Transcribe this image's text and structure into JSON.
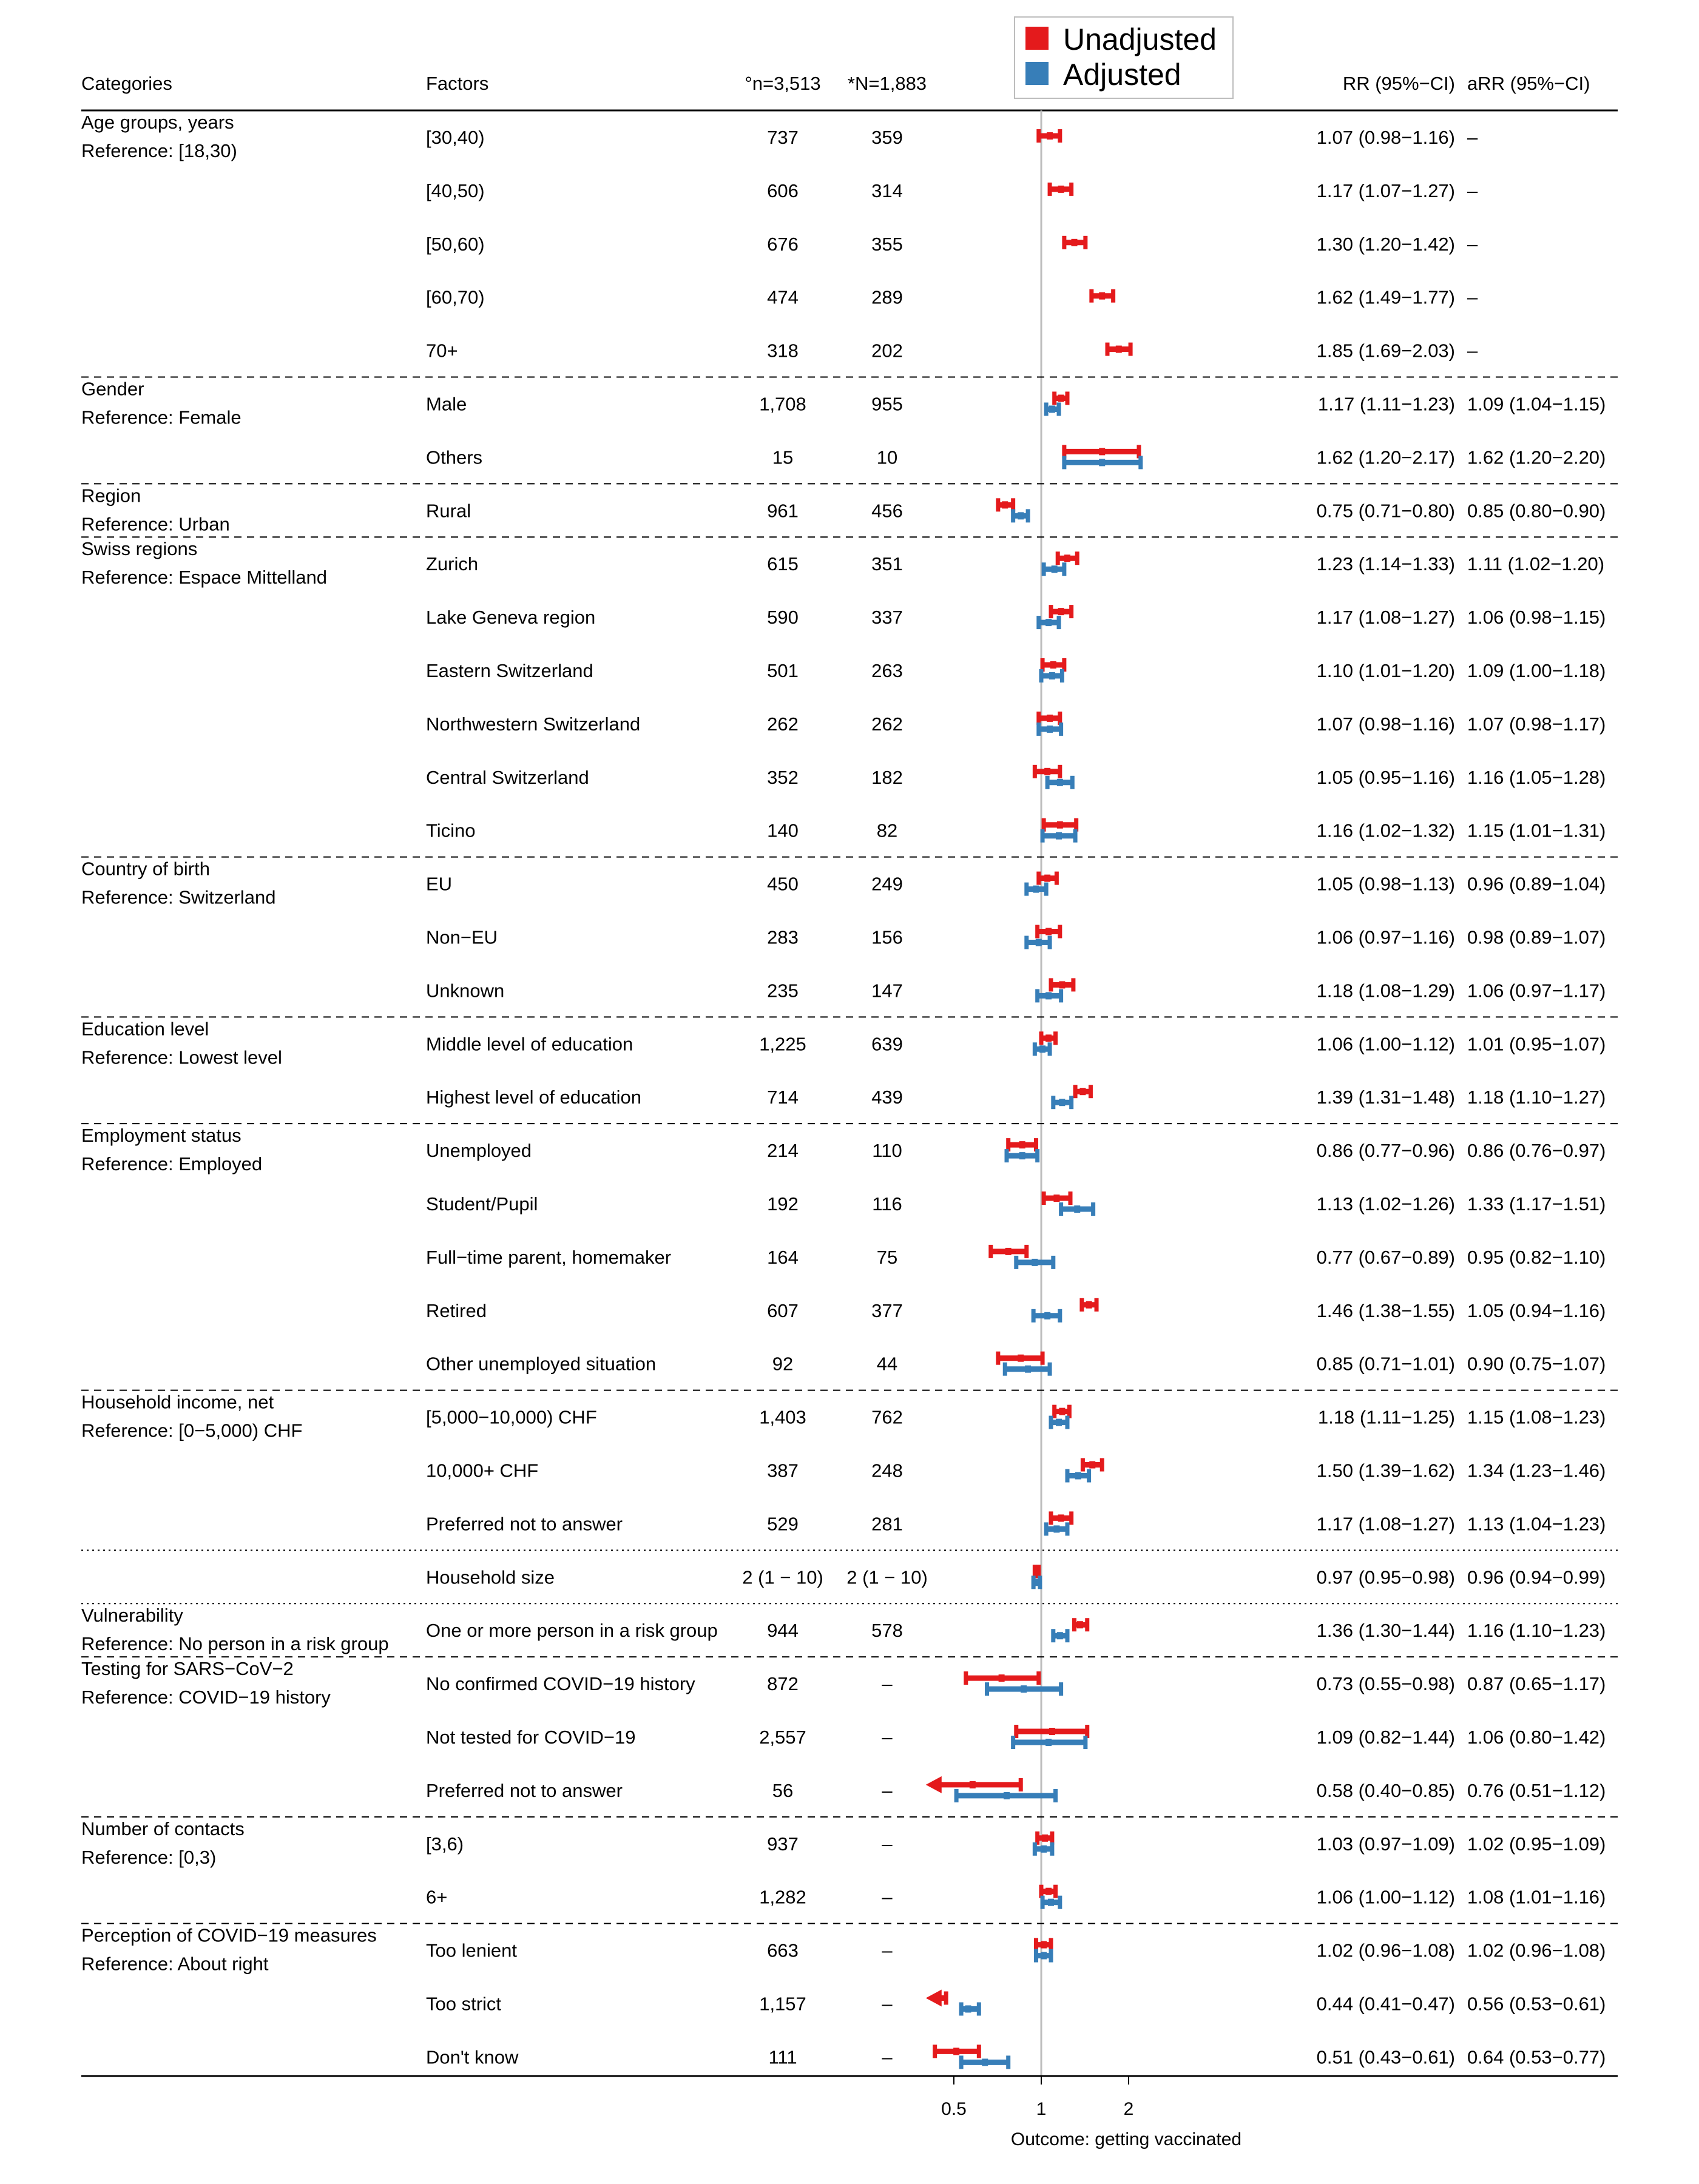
{
  "headers": {
    "categories": "Categories",
    "factors": "Factors",
    "n": "°n=3,513",
    "N": "*N=1,883",
    "rr": "RR (95%−CI)",
    "arr": "aRR (95%−CI)"
  },
  "legend": [
    {
      "label": "Unadjusted",
      "color": "#e41a1c"
    },
    {
      "label": "Adjusted",
      "color": "#377eb8"
    }
  ],
  "axis": {
    "scale": "log",
    "ticks": [
      {
        "value": 0.5,
        "label": "0.5"
      },
      {
        "value": 1,
        "label": "1"
      },
      {
        "value": 2,
        "label": "2"
      }
    ],
    "label": "Outcome: getting vaccinated",
    "reference_line": 1,
    "lower_clip": 0.42
  },
  "sections": [
    {
      "title": "Age groups, years",
      "reference": "Reference: [18,30)",
      "separator": "dashed",
      "rows": [
        {
          "factor": "[30,40)",
          "n": "737",
          "N": "359",
          "rr_text": "1.07 (0.98−1.16)",
          "arr_text": "–",
          "rr": [
            1.07,
            0.98,
            1.16
          ],
          "arr": null
        },
        {
          "factor": "[40,50)",
          "n": "606",
          "N": "314",
          "rr_text": "1.17 (1.07−1.27)",
          "arr_text": "–",
          "rr": [
            1.17,
            1.07,
            1.27
          ],
          "arr": null
        },
        {
          "factor": "[50,60)",
          "n": "676",
          "N": "355",
          "rr_text": "1.30 (1.20−1.42)",
          "arr_text": "–",
          "rr": [
            1.3,
            1.2,
            1.42
          ],
          "arr": null
        },
        {
          "factor": "[60,70)",
          "n": "474",
          "N": "289",
          "rr_text": "1.62 (1.49−1.77)",
          "arr_text": "–",
          "rr": [
            1.62,
            1.49,
            1.77
          ],
          "arr": null
        },
        {
          "factor": "70+",
          "n": "318",
          "N": "202",
          "rr_text": "1.85 (1.69−2.03)",
          "arr_text": "–",
          "rr": [
            1.85,
            1.69,
            2.03
          ],
          "arr": null
        }
      ]
    },
    {
      "title": "Gender",
      "reference": "Reference: Female",
      "separator": "dashed",
      "rows": [
        {
          "factor": "Male",
          "n": "1,708",
          "N": "955",
          "rr_text": "1.17 (1.11−1.23)",
          "arr_text": "1.09 (1.04−1.15)",
          "rr": [
            1.17,
            1.11,
            1.23
          ],
          "arr": [
            1.09,
            1.04,
            1.15
          ]
        },
        {
          "factor": "Others",
          "n": "15",
          "N": "10",
          "rr_text": "1.62 (1.20−2.17)",
          "arr_text": "1.62 (1.20−2.20)",
          "rr": [
            1.62,
            1.2,
            2.17
          ],
          "arr": [
            1.62,
            1.2,
            2.2
          ]
        }
      ]
    },
    {
      "title": "Region",
      "reference": "Reference: Urban",
      "separator": "dashed",
      "rows": [
        {
          "factor": "Rural",
          "n": "961",
          "N": "456",
          "rr_text": "0.75 (0.71−0.80)",
          "arr_text": "0.85 (0.80−0.90)",
          "rr": [
            0.75,
            0.71,
            0.8
          ],
          "arr": [
            0.85,
            0.8,
            0.9
          ]
        }
      ]
    },
    {
      "title": "Swiss regions",
      "reference": "Reference: Espace Mittelland",
      "separator": "dashed",
      "rows": [
        {
          "factor": "Zurich",
          "n": "615",
          "N": "351",
          "rr_text": "1.23 (1.14−1.33)",
          "arr_text": "1.11 (1.02−1.20)",
          "rr": [
            1.23,
            1.14,
            1.33
          ],
          "arr": [
            1.11,
            1.02,
            1.2
          ]
        },
        {
          "factor": "Lake Geneva region",
          "n": "590",
          "N": "337",
          "rr_text": "1.17 (1.08−1.27)",
          "arr_text": "1.06 (0.98−1.15)",
          "rr": [
            1.17,
            1.08,
            1.27
          ],
          "arr": [
            1.06,
            0.98,
            1.15
          ]
        },
        {
          "factor": "Eastern Switzerland",
          "n": "501",
          "N": "263",
          "rr_text": "1.10 (1.01−1.20)",
          "arr_text": "1.09 (1.00−1.18)",
          "rr": [
            1.1,
            1.01,
            1.2
          ],
          "arr": [
            1.09,
            1.0,
            1.18
          ]
        },
        {
          "factor": "Northwestern Switzerland",
          "n": "262",
          "N": "262",
          "rr_text": "1.07 (0.98−1.16)",
          "arr_text": "1.07 (0.98−1.17)",
          "rr": [
            1.07,
            0.98,
            1.16
          ],
          "arr": [
            1.07,
            0.98,
            1.17
          ]
        },
        {
          "factor": "Central Switzerland",
          "n": "352",
          "N": "182",
          "rr_text": "1.05 (0.95−1.16)",
          "arr_text": "1.16 (1.05−1.28)",
          "rr": [
            1.05,
            0.95,
            1.16
          ],
          "arr": [
            1.16,
            1.05,
            1.28
          ]
        },
        {
          "factor": "Ticino",
          "n": "140",
          "N": "82",
          "rr_text": "1.16 (1.02−1.32)",
          "arr_text": "1.15 (1.01−1.31)",
          "rr": [
            1.16,
            1.02,
            1.32
          ],
          "arr": [
            1.15,
            1.01,
            1.31
          ]
        }
      ]
    },
    {
      "title": "Country of birth",
      "reference": "Reference: Switzerland",
      "separator": "dashed",
      "rows": [
        {
          "factor": "EU",
          "n": "450",
          "N": "249",
          "rr_text": "1.05 (0.98−1.13)",
          "arr_text": "0.96 (0.89−1.04)",
          "rr": [
            1.05,
            0.98,
            1.13
          ],
          "arr": [
            0.96,
            0.89,
            1.04
          ]
        },
        {
          "factor": "Non−EU",
          "n": "283",
          "N": "156",
          "rr_text": "1.06 (0.97−1.16)",
          "arr_text": "0.98 (0.89−1.07)",
          "rr": [
            1.06,
            0.97,
            1.16
          ],
          "arr": [
            0.98,
            0.89,
            1.07
          ]
        },
        {
          "factor": "Unknown",
          "n": "235",
          "N": "147",
          "rr_text": "1.18 (1.08−1.29)",
          "arr_text": "1.06 (0.97−1.17)",
          "rr": [
            1.18,
            1.08,
            1.29
          ],
          "arr": [
            1.06,
            0.97,
            1.17
          ]
        }
      ]
    },
    {
      "title": "Education level",
      "reference": "Reference: Lowest level",
      "separator": "dashed",
      "rows": [
        {
          "factor": "Middle level of education",
          "n": "1,225",
          "N": "639",
          "rr_text": "1.06 (1.00−1.12)",
          "arr_text": "1.01 (0.95−1.07)",
          "rr": [
            1.06,
            1.0,
            1.12
          ],
          "arr": [
            1.01,
            0.95,
            1.07
          ]
        },
        {
          "factor": "Highest level of education",
          "n": "714",
          "N": "439",
          "rr_text": "1.39 (1.31−1.48)",
          "arr_text": "1.18 (1.10−1.27)",
          "rr": [
            1.39,
            1.31,
            1.48
          ],
          "arr": [
            1.18,
            1.1,
            1.27
          ]
        }
      ]
    },
    {
      "title": "Employment status",
      "reference": "Reference: Employed",
      "separator": "dashed",
      "rows": [
        {
          "factor": "Unemployed",
          "n": "214",
          "N": "110",
          "rr_text": "0.86 (0.77−0.96)",
          "arr_text": "0.86 (0.76−0.97)",
          "rr": [
            0.86,
            0.77,
            0.96
          ],
          "arr": [
            0.86,
            0.76,
            0.97
          ]
        },
        {
          "factor": "Student/Pupil",
          "n": "192",
          "N": "116",
          "rr_text": "1.13 (1.02−1.26)",
          "arr_text": "1.33 (1.17−1.51)",
          "rr": [
            1.13,
            1.02,
            1.26
          ],
          "arr": [
            1.33,
            1.17,
            1.51
          ]
        },
        {
          "factor": "Full−time parent, homemaker",
          "n": "164",
          "N": "75",
          "rr_text": "0.77 (0.67−0.89)",
          "arr_text": "0.95 (0.82−1.10)",
          "rr": [
            0.77,
            0.67,
            0.89
          ],
          "arr": [
            0.95,
            0.82,
            1.1
          ]
        },
        {
          "factor": "Retired",
          "n": "607",
          "N": "377",
          "rr_text": "1.46 (1.38−1.55)",
          "arr_text": "1.05 (0.94−1.16)",
          "rr": [
            1.46,
            1.38,
            1.55
          ],
          "arr": [
            1.05,
            0.94,
            1.16
          ]
        },
        {
          "factor": "Other unemployed situation",
          "n": "92",
          "N": "44",
          "rr_text": "0.85 (0.71−1.01)",
          "arr_text": "0.90 (0.75−1.07)",
          "rr": [
            0.85,
            0.71,
            1.01
          ],
          "arr": [
            0.9,
            0.75,
            1.07
          ]
        }
      ]
    },
    {
      "title": "Household income, net",
      "reference": "Reference: [0−5,000) CHF",
      "separator": "dotted",
      "rows": [
        {
          "factor": "[5,000−10,000) CHF",
          "n": "1,403",
          "N": "762",
          "rr_text": "1.18 (1.11−1.25)",
          "arr_text": "1.15 (1.08−1.23)",
          "rr": [
            1.18,
            1.11,
            1.25
          ],
          "arr": [
            1.15,
            1.08,
            1.23
          ]
        },
        {
          "factor": "10,000+ CHF",
          "n": "387",
          "N": "248",
          "rr_text": "1.50 (1.39−1.62)",
          "arr_text": "1.34 (1.23−1.46)",
          "rr": [
            1.5,
            1.39,
            1.62
          ],
          "arr": [
            1.34,
            1.23,
            1.46
          ]
        },
        {
          "factor": "Preferred not to answer",
          "n": "529",
          "N": "281",
          "rr_text": "1.17 (1.08−1.27)",
          "arr_text": "1.13 (1.04−1.23)",
          "rr": [
            1.17,
            1.08,
            1.27
          ],
          "arr": [
            1.13,
            1.04,
            1.23
          ]
        }
      ]
    },
    {
      "title": "",
      "reference": "",
      "separator": "dotted",
      "rows": [
        {
          "factor": "Household size",
          "n": "2 (1 − 10)",
          "N": "2 (1 − 10)",
          "rr_text": "0.97 (0.95−0.98)",
          "arr_text": "0.96 (0.94−0.99)",
          "rr": [
            0.97,
            0.95,
            0.98
          ],
          "arr": [
            0.96,
            0.94,
            0.99
          ]
        }
      ]
    },
    {
      "title": "Vulnerability",
      "reference": "Reference: No person in a risk group",
      "separator": "dashed",
      "rows": [
        {
          "factor": "One or more person in a risk group",
          "n": "944",
          "N": "578",
          "rr_text": "1.36 (1.30−1.44)",
          "arr_text": "1.16 (1.10−1.23)",
          "rr": [
            1.36,
            1.3,
            1.44
          ],
          "arr": [
            1.16,
            1.1,
            1.23
          ]
        }
      ]
    },
    {
      "title": "Testing for SARS−CoV−2",
      "reference": "Reference: COVID−19 history",
      "separator": "dashed",
      "rows": [
        {
          "factor": "No confirmed COVID−19 history",
          "n": "872",
          "N": "–",
          "rr_text": "0.73 (0.55−0.98)",
          "arr_text": "0.87 (0.65−1.17)",
          "rr": [
            0.73,
            0.55,
            0.98
          ],
          "arr": [
            0.87,
            0.65,
            1.17
          ]
        },
        {
          "factor": "Not tested for COVID−19",
          "n": "2,557",
          "N": "–",
          "rr_text": "1.09 (0.82−1.44)",
          "arr_text": "1.06 (0.80−1.42)",
          "rr": [
            1.09,
            0.82,
            1.44
          ],
          "arr": [
            1.06,
            0.8,
            1.42
          ]
        },
        {
          "factor": "Preferred not to answer",
          "n": "56",
          "N": "–",
          "rr_text": "0.58 (0.40−0.85)",
          "arr_text": "0.76 (0.51−1.12)",
          "rr": [
            0.58,
            0.4,
            0.85
          ],
          "arr": [
            0.76,
            0.51,
            1.12
          ]
        }
      ]
    },
    {
      "title": "Number of contacts",
      "reference": "Reference: [0,3)",
      "separator": "dashed",
      "rows": [
        {
          "factor": "[3,6)",
          "n": "937",
          "N": "–",
          "rr_text": "1.03 (0.97−1.09)",
          "arr_text": "1.02 (0.95−1.09)",
          "rr": [
            1.03,
            0.97,
            1.09
          ],
          "arr": [
            1.02,
            0.95,
            1.09
          ]
        },
        {
          "factor": "6+",
          "n": "1,282",
          "N": "–",
          "rr_text": "1.06 (1.00−1.12)",
          "arr_text": "1.08 (1.01−1.16)",
          "rr": [
            1.06,
            1.0,
            1.12
          ],
          "arr": [
            1.08,
            1.01,
            1.16
          ]
        }
      ]
    },
    {
      "title": "Perception of COVID−19 measures",
      "reference": "Reference: About right",
      "separator": null,
      "rows": [
        {
          "factor": "Too lenient",
          "n": "663",
          "N": "–",
          "rr_text": "1.02 (0.96−1.08)",
          "arr_text": "1.02 (0.96−1.08)",
          "rr": [
            1.02,
            0.96,
            1.08
          ],
          "arr": [
            1.02,
            0.96,
            1.08
          ]
        },
        {
          "factor": "Too strict",
          "n": "1,157",
          "N": "–",
          "rr_text": "0.44 (0.41−0.47)",
          "arr_text": "0.56 (0.53−0.61)",
          "rr": [
            0.44,
            0.41,
            0.47
          ],
          "arr": [
            0.56,
            0.53,
            0.61
          ]
        },
        {
          "factor": "Don't know",
          "n": "111",
          "N": "–",
          "rr_text": "0.51 (0.43−0.61)",
          "arr_text": "0.64 (0.53−0.77)",
          "rr": [
            0.51,
            0.43,
            0.61
          ],
          "arr": [
            0.64,
            0.53,
            0.77
          ]
        }
      ]
    }
  ],
  "chart_data": {
    "type": "forest",
    "x_scale": "log",
    "xlabel": "Outcome: getting vaccinated",
    "xticks": [
      0.5,
      1,
      2
    ],
    "reference_value": 1,
    "series": [
      {
        "name": "Unadjusted",
        "color": "#e41a1c"
      },
      {
        "name": "Adjusted",
        "color": "#377eb8"
      }
    ]
  }
}
